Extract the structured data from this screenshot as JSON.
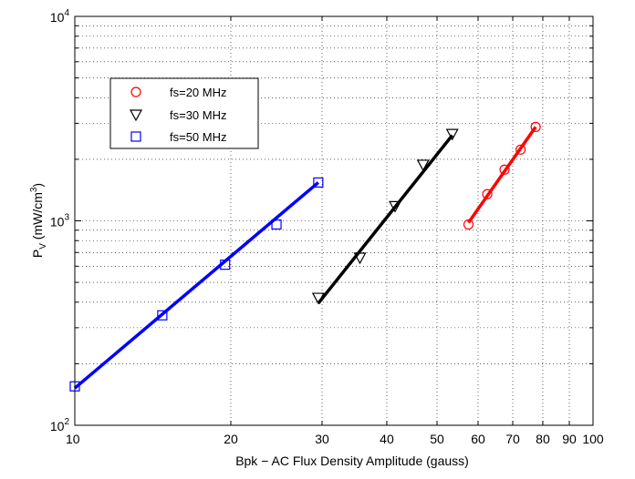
{
  "chart_data": {
    "type": "scatter",
    "title": "",
    "xlabel": "Bpk − AC Flux Density Amplitude (gauss)",
    "ylabel": {
      "main": "P",
      "sub": "V",
      "unit_prefix": " (mW/cm",
      "unit_sup": "3",
      "unit_suffix": ")"
    },
    "x_scale": "log",
    "y_scale": "log",
    "xlim": [
      10,
      100
    ],
    "ylim": [
      100,
      10000
    ],
    "grid": true,
    "grid_style": "dotted",
    "legend_placement": "upper-left",
    "x_ticks": [
      {
        "value": 10,
        "label": "10"
      },
      {
        "value": 20,
        "label": "20"
      },
      {
        "value": 30,
        "label": "30"
      },
      {
        "value": 40,
        "label": "40"
      },
      {
        "value": 50,
        "label": "50"
      },
      {
        "value": 60,
        "label": "60"
      },
      {
        "value": 70,
        "label": "70"
      },
      {
        "value": 80,
        "label": "80"
      },
      {
        "value": 90,
        "label": "90"
      },
      {
        "value": 100,
        "label": "100"
      }
    ],
    "y_ticks": [
      {
        "value": 100,
        "base": "10",
        "exp": "2"
      },
      {
        "value": 1000,
        "base": "10",
        "exp": "3"
      },
      {
        "value": 10000,
        "base": "10",
        "exp": "4"
      }
    ],
    "series": [
      {
        "name": "fs=20 MHz",
        "color": "#ff0000",
        "marker": "circle",
        "markers": [
          [
            57.5,
            960
          ],
          [
            62.5,
            1350
          ],
          [
            67.5,
            1780
          ],
          [
            72.5,
            2230
          ],
          [
            77.5,
            2880
          ]
        ],
        "fit_line": [
          [
            57.5,
            980
          ],
          [
            77.5,
            2880
          ]
        ]
      },
      {
        "name": "fs=30 MHz",
        "color": "#000000",
        "marker": "triangle-down",
        "markers": [
          [
            29.5,
            420
          ],
          [
            35.5,
            660
          ],
          [
            41.5,
            1180
          ],
          [
            47,
            1880
          ],
          [
            53.5,
            2660
          ]
        ],
        "fit_line": [
          [
            29.5,
            395
          ],
          [
            53.5,
            2620
          ]
        ]
      },
      {
        "name": "fs=50 MHz",
        "color": "#0000ff",
        "marker": "square",
        "markers": [
          [
            10,
            155
          ],
          [
            14.75,
            345
          ],
          [
            19.5,
            610
          ],
          [
            24.5,
            960
          ],
          [
            29.5,
            1540
          ]
        ],
        "fit_line": [
          [
            10,
            152
          ],
          [
            29.5,
            1540
          ]
        ]
      }
    ]
  }
}
